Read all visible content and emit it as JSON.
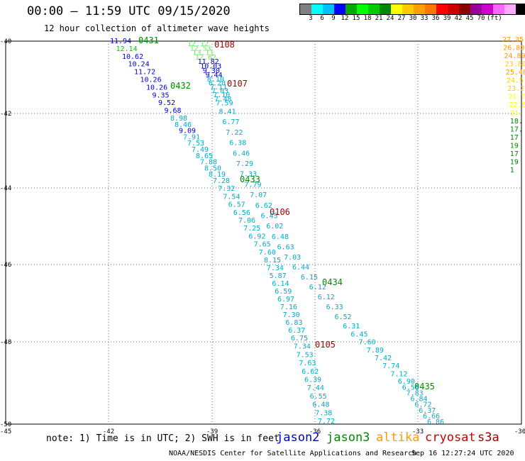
{
  "title": "00:00 – 11:59 UTC 09/15/2020",
  "subtitle": "12 hour collection of altimeter wave heights",
  "colorbar": {
    "colors": [
      "#808080",
      "#00ffff",
      "#00c0ff",
      "#0000ff",
      "#00aa00",
      "#00ff00",
      "#00cc00",
      "#008800",
      "#ffff00",
      "#ffcc00",
      "#ffa000",
      "#ff7700",
      "#ff0000",
      "#cc0000",
      "#880000",
      "#990099",
      "#cc00cc",
      "#ff66ff",
      "#ffaaff",
      "#000000"
    ],
    "labels": [
      "3",
      "6",
      "9",
      "12",
      "15",
      "18",
      "21",
      "24",
      "27",
      "30",
      "33",
      "36",
      "39",
      "42",
      "45",
      "70",
      "(ft)"
    ]
  },
  "axes": {
    "x_ticks": [
      "-42",
      "-39",
      "-36",
      "-33",
      "-30"
    ],
    "y_ticks": [
      "-40",
      "-42",
      "-44",
      "-46",
      "-48",
      "-50"
    ],
    "corner_label": "-45"
  },
  "satellite_colors": {
    "jason2": "#0000cc",
    "jason3": "#008800",
    "altika": "#ff9900",
    "cryosat": "#cc0000",
    "s3a": "#990000",
    "obs": "#00aacc"
  },
  "pass_labels": [
    {
      "text": "0431",
      "sat": "jason3"
    },
    {
      "text": "0108",
      "sat": "s3a"
    },
    {
      "text": "0432",
      "sat": "jason3"
    },
    {
      "text": "0107",
      "sat": "s3a"
    },
    {
      "text": "0433",
      "sat": "jason3"
    },
    {
      "text": "0106",
      "sat": "s3a"
    },
    {
      "text": "0434",
      "sat": "jason3"
    },
    {
      "text": "0105",
      "sat": "s3a"
    },
    {
      "text": "0435",
      "sat": "jason3"
    }
  ],
  "observations": [
    {
      "v": "11.94",
      "c": "#0000cc"
    },
    {
      "v": "12.14",
      "c": "#00cc00"
    },
    {
      "v": "10.62",
      "c": "#0000cc"
    },
    {
      "v": "10.24",
      "c": "#0000cc"
    },
    {
      "v": "11.72",
      "c": "#0000cc"
    },
    {
      "v": "10.26",
      "c": "#0000cc"
    },
    {
      "v": "10.26",
      "c": "#0000cc"
    },
    {
      "v": "9.35",
      "c": "#0000cc"
    },
    {
      "v": "9.52",
      "c": "#0000cc"
    },
    {
      "v": "9.68",
      "c": "#0000cc"
    },
    {
      "v": "8.98",
      "c": "#00aacc"
    },
    {
      "v": "8.46",
      "c": "#00aacc"
    },
    {
      "v": "9.09",
      "c": "#0000cc"
    },
    {
      "v": "7.91",
      "c": "#00aacc"
    },
    {
      "v": "7.53",
      "c": "#00aacc"
    },
    {
      "v": "7.49",
      "c": "#00aacc"
    },
    {
      "v": "8.65",
      "c": "#00aacc"
    },
    {
      "v": "7.88",
      "c": "#00aacc"
    },
    {
      "v": "8.50",
      "c": "#00aacc"
    },
    {
      "v": "8.19",
      "c": "#00aacc"
    },
    {
      "v": "7.28",
      "c": "#00aacc"
    },
    {
      "v": "7.32",
      "c": "#00aacc"
    },
    {
      "v": "7.54",
      "c": "#00aacc"
    },
    {
      "v": "6.57",
      "c": "#00aacc"
    },
    {
      "v": "6.56",
      "c": "#00aacc"
    },
    {
      "v": "7.06",
      "c": "#00aacc"
    },
    {
      "v": "7.25",
      "c": "#00aacc"
    },
    {
      "v": "6.92",
      "c": "#00aacc"
    },
    {
      "v": "7.65",
      "c": "#00aacc"
    },
    {
      "v": "7.60",
      "c": "#00aacc"
    },
    {
      "v": "8.15",
      "c": "#00aacc"
    },
    {
      "v": "7.34",
      "c": "#00aacc"
    },
    {
      "v": "5.87",
      "c": "#00aacc"
    },
    {
      "v": "6.14",
      "c": "#00aacc"
    },
    {
      "v": "6.59",
      "c": "#00aacc"
    },
    {
      "v": "6.97",
      "c": "#00aacc"
    },
    {
      "v": "7.16",
      "c": "#00aacc"
    },
    {
      "v": "7.30",
      "c": "#00aacc"
    },
    {
      "v": "6.83",
      "c": "#00aacc"
    },
    {
      "v": "6.37",
      "c": "#00aacc"
    },
    {
      "v": "6.75",
      "c": "#00aacc"
    },
    {
      "v": "7.34",
      "c": "#00aacc"
    },
    {
      "v": "7.53",
      "c": "#00aacc"
    },
    {
      "v": "7.63",
      "c": "#00aacc"
    },
    {
      "v": "6.62",
      "c": "#00aacc"
    },
    {
      "v": "6.39",
      "c": "#00aacc"
    },
    {
      "v": "7.44",
      "c": "#00aacc"
    },
    {
      "v": "6.55",
      "c": "#00aacc"
    },
    {
      "v": "6.48",
      "c": "#00aacc"
    },
    {
      "v": "7.38",
      "c": "#00aacc"
    },
    {
      "v": "7.72",
      "c": "#00aacc"
    },
    {
      "v": "12.12",
      "c": "#66ee66"
    },
    {
      "v": "12.53",
      "c": "#66ee66"
    },
    {
      "v": "13.11",
      "c": "#66ee66"
    },
    {
      "v": "12.62",
      "c": "#66ee66"
    },
    {
      "v": "11.82",
      "c": "#0000cc"
    },
    {
      "v": "10.03",
      "c": "#0000cc"
    },
    {
      "v": "9.30",
      "c": "#0000cc"
    },
    {
      "v": "9.44",
      "c": "#0000cc"
    },
    {
      "v": "8.10",
      "c": "#00aacc"
    },
    {
      "v": "6.20",
      "c": "#00aacc"
    },
    {
      "v": "7.11",
      "c": "#00aacc"
    },
    {
      "v": "7.03",
      "c": "#00aacc"
    },
    {
      "v": "7.10",
      "c": "#00aacc"
    },
    {
      "v": "7.48",
      "c": "#00aacc"
    },
    {
      "v": "7.59",
      "c": "#00aacc"
    },
    {
      "v": "8.41",
      "c": "#00aacc"
    },
    {
      "v": "6.77",
      "c": "#00aacc"
    },
    {
      "v": "7.22",
      "c": "#00aacc"
    },
    {
      "v": "6.38",
      "c": "#00aacc"
    },
    {
      "v": "6.46",
      "c": "#00aacc"
    },
    {
      "v": "7.29",
      "c": "#00aacc"
    },
    {
      "v": "7.33",
      "c": "#00aacc"
    },
    {
      "v": "7.79",
      "c": "#00aacc"
    },
    {
      "v": "7.07",
      "c": "#00aacc"
    },
    {
      "v": "6.62",
      "c": "#00aacc"
    },
    {
      "v": "6.45",
      "c": "#00aacc"
    },
    {
      "v": "6.02",
      "c": "#00aacc"
    },
    {
      "v": "6.48",
      "c": "#00aacc"
    },
    {
      "v": "6.63",
      "c": "#00aacc"
    },
    {
      "v": "7.03",
      "c": "#00aacc"
    },
    {
      "v": "6.44",
      "c": "#00aacc"
    },
    {
      "v": "6.15",
      "c": "#00aacc"
    },
    {
      "v": "6.12",
      "c": "#00aacc"
    },
    {
      "v": "6.12",
      "c": "#00aacc"
    },
    {
      "v": "6.33",
      "c": "#00aacc"
    },
    {
      "v": "6.52",
      "c": "#00aacc"
    },
    {
      "v": "6.31",
      "c": "#00aacc"
    },
    {
      "v": "6.45",
      "c": "#00aacc"
    },
    {
      "v": "7.60",
      "c": "#00aacc"
    },
    {
      "v": "7.89",
      "c": "#00aacc"
    },
    {
      "v": "7.42",
      "c": "#00aacc"
    },
    {
      "v": "7.74",
      "c": "#00aacc"
    },
    {
      "v": "7.12",
      "c": "#00aacc"
    },
    {
      "v": "6.90",
      "c": "#00aacc"
    },
    {
      "v": "6.58",
      "c": "#00aacc"
    },
    {
      "v": "7.83",
      "c": "#00aacc"
    },
    {
      "v": "6.84",
      "c": "#00aacc"
    },
    {
      "v": "6.72",
      "c": "#00aacc"
    },
    {
      "v": "6.37",
      "c": "#00aacc"
    },
    {
      "v": "6.66",
      "c": "#00aacc"
    },
    {
      "v": "6.86",
      "c": "#00aacc"
    },
    {
      "v": "27.35",
      "c": "#ff9900"
    },
    {
      "v": "26.80",
      "c": "#ff9900"
    },
    {
      "v": "24.89",
      "c": "#ff9900"
    },
    {
      "v": "23.80",
      "c": "#ffcc00"
    },
    {
      "v": "25.40",
      "c": "#ff9900"
    },
    {
      "v": "24.5",
      "c": "#ffcc00"
    },
    {
      "v": "23.2",
      "c": "#ffcc00"
    },
    {
      "v": "21.7",
      "c": "#ffff00"
    },
    {
      "v": "22.6",
      "c": "#ffff00"
    },
    {
      "v": "21.",
      "c": "#ffff00"
    },
    {
      "v": "18.",
      "c": "#008800"
    },
    {
      "v": "17.",
      "c": "#008800"
    },
    {
      "v": "17",
      "c": "#008800"
    },
    {
      "v": "19",
      "c": "#008800"
    },
    {
      "v": "17",
      "c": "#008800"
    },
    {
      "v": "19",
      "c": "#008800"
    },
    {
      "v": "1",
      "c": "#008800"
    }
  ],
  "note": "note: 1) Time is in UTC; 2) SWH is in feet",
  "legend": [
    {
      "name": "jason2",
      "color": "#0000cc"
    },
    {
      "name": "jason3",
      "color": "#008800"
    },
    {
      "name": "altika",
      "color": "#ff9900"
    },
    {
      "name": "cryosat",
      "color": "#cc0000"
    },
    {
      "name": "s3a",
      "color": "#990000"
    }
  ],
  "footer_left": "NOAA/NESDIS Center for Satellite Applications and Research",
  "footer_right": "Sep 16 12:27:24 UTC 2020"
}
